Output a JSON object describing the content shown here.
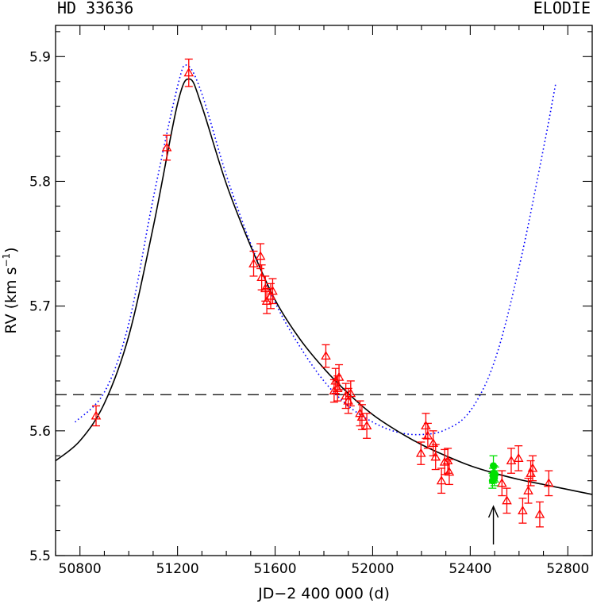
{
  "chart_data": {
    "type": "scatter",
    "title_left": "HD 33636",
    "title_right": "ELODIE",
    "xlabel": "JD−2 400 000 (d)",
    "ylabel_main": "RV (km s",
    "ylabel_sup": "−1",
    "ylabel_close": ")",
    "xlim": [
      50700,
      52900
    ],
    "ylim": [
      5.5,
      5.925
    ],
    "xticks": [
      50800,
      51200,
      51600,
      52000,
      52400,
      52800
    ],
    "xtick_labels": [
      "50800",
      "51200",
      "51600",
      "52000",
      "52400",
      "52800"
    ],
    "yticks": [
      5.5,
      5.6,
      5.7,
      5.8,
      5.9
    ],
    "ytick_labels": [
      "5.5",
      "5.6",
      "5.7",
      "5.8",
      "5.9"
    ],
    "mean_level": 5.629,
    "arrow_at_x": 52495,
    "colors": {
      "elodie": "#ff0000",
      "other": "#00e000",
      "fit_solid": "#000000",
      "fit_dotted": "#0000ff",
      "mean_line": "#000000"
    },
    "series": [
      {
        "marker": "triangle",
        "points": [
          {
            "x": 50866,
            "y": 5.612,
            "err": 0.008
          },
          {
            "x": 51156,
            "y": 5.827,
            "err": 0.01
          },
          {
            "x": 51246,
            "y": 5.887,
            "err": 0.011
          },
          {
            "x": 51512,
            "y": 5.734,
            "err": 0.01
          },
          {
            "x": 51540,
            "y": 5.74,
            "err": 0.01
          },
          {
            "x": 51545,
            "y": 5.723,
            "err": 0.01
          },
          {
            "x": 51560,
            "y": 5.714,
            "err": 0.01
          },
          {
            "x": 51566,
            "y": 5.704,
            "err": 0.01
          },
          {
            "x": 51582,
            "y": 5.708,
            "err": 0.01
          },
          {
            "x": 51590,
            "y": 5.712,
            "err": 0.01
          },
          {
            "x": 51808,
            "y": 5.66,
            "err": 0.009
          },
          {
            "x": 51842,
            "y": 5.632,
            "err": 0.009
          },
          {
            "x": 51848,
            "y": 5.64,
            "err": 0.01
          },
          {
            "x": 51856,
            "y": 5.634,
            "err": 0.01
          },
          {
            "x": 51862,
            "y": 5.643,
            "err": 0.01
          },
          {
            "x": 51890,
            "y": 5.628,
            "err": 0.01
          },
          {
            "x": 51900,
            "y": 5.624,
            "err": 0.01
          },
          {
            "x": 51910,
            "y": 5.63,
            "err": 0.01
          },
          {
            "x": 51948,
            "y": 5.614,
            "err": 0.01
          },
          {
            "x": 51956,
            "y": 5.611,
            "err": 0.01
          },
          {
            "x": 51976,
            "y": 5.604,
            "err": 0.01
          },
          {
            "x": 52198,
            "y": 5.582,
            "err": 0.009
          },
          {
            "x": 52218,
            "y": 5.604,
            "err": 0.01
          },
          {
            "x": 52226,
            "y": 5.596,
            "err": 0.01
          },
          {
            "x": 52248,
            "y": 5.59,
            "err": 0.01
          },
          {
            "x": 52258,
            "y": 5.579,
            "err": 0.01
          },
          {
            "x": 52282,
            "y": 5.56,
            "err": 0.01
          },
          {
            "x": 52295,
            "y": 5.575,
            "err": 0.01
          },
          {
            "x": 52308,
            "y": 5.576,
            "err": 0.01
          },
          {
            "x": 52314,
            "y": 5.567,
            "err": 0.01
          },
          {
            "x": 52530,
            "y": 5.558,
            "err": 0.01
          },
          {
            "x": 52550,
            "y": 5.544,
            "err": 0.01
          },
          {
            "x": 52568,
            "y": 5.576,
            "err": 0.01
          },
          {
            "x": 52598,
            "y": 5.578,
            "err": 0.01
          },
          {
            "x": 52615,
            "y": 5.536,
            "err": 0.01
          },
          {
            "x": 52638,
            "y": 5.552,
            "err": 0.01
          },
          {
            "x": 52648,
            "y": 5.566,
            "err": 0.01
          },
          {
            "x": 52656,
            "y": 5.57,
            "err": 0.01
          },
          {
            "x": 52685,
            "y": 5.533,
            "err": 0.01
          },
          {
            "x": 52722,
            "y": 5.558,
            "err": 0.01
          }
        ]
      },
      {
        "marker": "filled-circle",
        "points": [
          {
            "x": 52491,
            "y": 5.56,
            "err": 0.006
          },
          {
            "x": 52493,
            "y": 5.564,
            "err": 0.006
          },
          {
            "x": 52495,
            "y": 5.572,
            "err": 0.008
          },
          {
            "x": 52497,
            "y": 5.566,
            "err": 0.006
          },
          {
            "x": 52499,
            "y": 5.562,
            "err": 0.006
          },
          {
            "x": 52502,
            "y": 5.565,
            "err": 0.006
          }
        ]
      }
    ],
    "curves": [
      {
        "style": "solid",
        "points": [
          [
            50700,
            5.576
          ],
          [
            50800,
            5.592
          ],
          [
            50900,
            5.622
          ],
          [
            51000,
            5.676
          ],
          [
            51100,
            5.763
          ],
          [
            51200,
            5.862
          ],
          [
            51250,
            5.882
          ],
          [
            51300,
            5.86
          ],
          [
            51400,
            5.798
          ],
          [
            51500,
            5.748
          ],
          [
            51600,
            5.705
          ],
          [
            51700,
            5.674
          ],
          [
            51800,
            5.65
          ],
          [
            51900,
            5.63
          ],
          [
            52000,
            5.613
          ],
          [
            52100,
            5.6
          ],
          [
            52200,
            5.589
          ],
          [
            52300,
            5.58
          ],
          [
            52400,
            5.572
          ],
          [
            52500,
            5.566
          ],
          [
            52600,
            5.561
          ],
          [
            52700,
            5.557
          ],
          [
            52800,
            5.553
          ],
          [
            52900,
            5.549
          ]
        ]
      },
      {
        "style": "dotted",
        "points": [
          [
            50780,
            5.607
          ],
          [
            50900,
            5.631
          ],
          [
            51000,
            5.686
          ],
          [
            51100,
            5.786
          ],
          [
            51200,
            5.876
          ],
          [
            51240,
            5.893
          ],
          [
            51300,
            5.87
          ],
          [
            51400,
            5.805
          ],
          [
            51500,
            5.75
          ],
          [
            51600,
            5.703
          ],
          [
            51700,
            5.668
          ],
          [
            51800,
            5.64
          ],
          [
            51900,
            5.62
          ],
          [
            52000,
            5.607
          ],
          [
            52100,
            5.599
          ],
          [
            52200,
            5.597
          ],
          [
            52300,
            5.601
          ],
          [
            52400,
            5.616
          ],
          [
            52500,
            5.656
          ],
          [
            52600,
            5.731
          ],
          [
            52700,
            5.826
          ],
          [
            52750,
            5.878
          ]
        ]
      }
    ]
  }
}
